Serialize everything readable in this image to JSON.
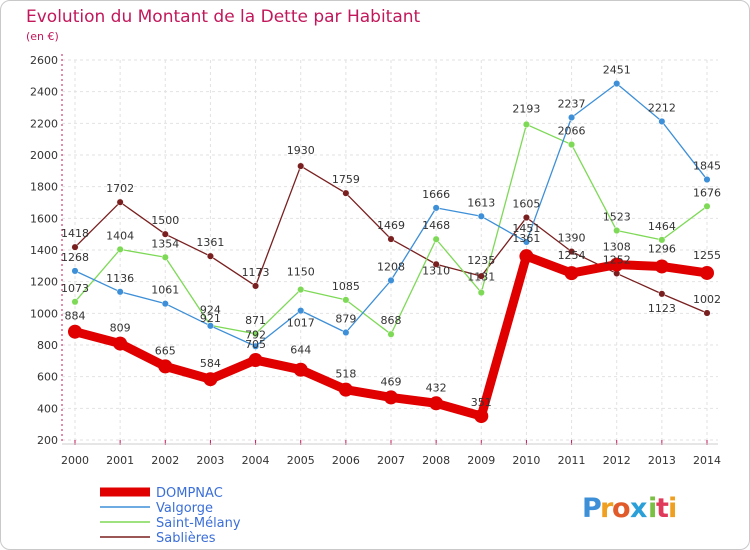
{
  "chart_data": {
    "type": "line",
    "title": "Evolution du Montant de la Dette par Habitant",
    "subtitle": "(en €)",
    "x": [
      "2000",
      "2001",
      "2002",
      "2003",
      "2004",
      "2005",
      "2006",
      "2007",
      "2008",
      "2009",
      "2010",
      "2011",
      "2012",
      "2013",
      "2014"
    ],
    "ylim": [
      200,
      2600
    ],
    "yticks": [
      200,
      400,
      600,
      800,
      1000,
      1200,
      1400,
      1600,
      1800,
      2000,
      2200,
      2400,
      2600
    ],
    "grid": true,
    "legend_position": "bottom-left",
    "series": [
      {
        "name": "Sablières",
        "color": "#7a1f1f",
        "values": [
          1418,
          1702,
          1500,
          1361,
          1173,
          1930,
          1759,
          1469,
          1310,
          1235,
          1605,
          1390,
          1252,
          1123,
          1002
        ]
      },
      {
        "name": "Saint-Mélany",
        "color": "#7ed957",
        "values": [
          1073,
          1404,
          1354,
          924,
          871,
          1150,
          1085,
          868,
          1468,
          1131,
          2193,
          2066,
          1523,
          1464,
          1676
        ]
      },
      {
        "name": "Valgorge",
        "color": "#3d8fd8",
        "values": [
          1268,
          1136,
          1061,
          921,
          792,
          1017,
          879,
          1208,
          1666,
          1613,
          1451,
          2237,
          2451,
          2212,
          1845
        ]
      },
      {
        "name": "DOMPNAC",
        "color": "#e00000",
        "values": [
          884,
          809,
          665,
          584,
          705,
          644,
          518,
          469,
          432,
          351,
          1361,
          1254,
          1308,
          1296,
          1255
        ]
      }
    ],
    "legend_order": [
      "DOMPNAC",
      "Valgorge",
      "Saint-Mélany",
      "Sablières"
    ]
  },
  "logo": {
    "text": "Proxiti"
  }
}
